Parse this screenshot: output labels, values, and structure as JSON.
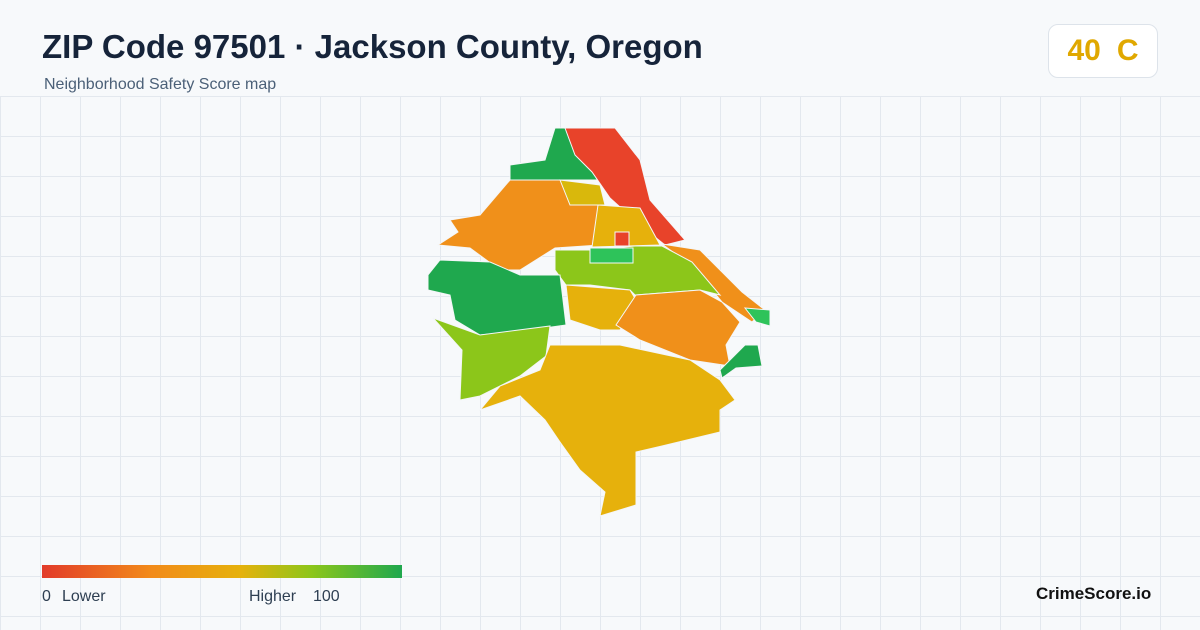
{
  "header": {
    "title": "ZIP Code 97501 · Jackson County, Oregon",
    "subtitle": "Neighborhood Safety Score map"
  },
  "score": {
    "value": 40,
    "grade": "C"
  },
  "legend": {
    "min": 0,
    "min_label": "Lower",
    "max_label": "Higher",
    "max": 100
  },
  "brand": "CrimeScore.io"
}
